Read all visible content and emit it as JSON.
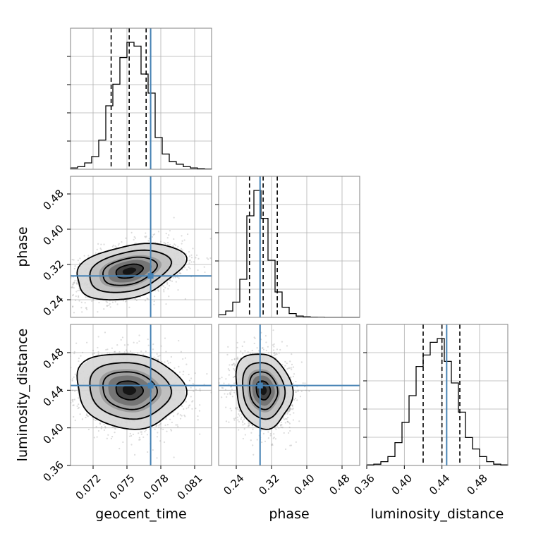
{
  "chart_data": {
    "type": "corner",
    "parameters": [
      "geocent_time",
      "phase",
      "luminosity_distance"
    ],
    "truth_color": "#4682b4",
    "truths": {
      "geocent_time": 0.0771,
      "phase": 0.294,
      "luminosity_distance": 0.445
    },
    "quantiles": {
      "geocent_time": [
        0.0736,
        0.0752,
        0.0767
      ],
      "phase": [
        0.27,
        0.301,
        0.333
      ],
      "luminosity_distance": [
        0.42,
        0.44,
        0.459
      ]
    },
    "ranges": {
      "geocent_time": [
        0.07,
        0.0825
      ],
      "phase": [
        0.2,
        0.52
      ],
      "luminosity_distance": [
        0.36,
        0.51
      ]
    },
    "ticks": {
      "geocent_time": [
        "0.072",
        "0.075",
        "0.078",
        "0.081"
      ],
      "phase": [
        "0.24",
        "0.32",
        "0.40",
        "0.48"
      ],
      "luminosity_distance": [
        "0.36",
        "0.40",
        "0.44",
        "0.48"
      ]
    },
    "histograms": {
      "geocent_time": {
        "edges_start": 0.07,
        "edges_step": 0.000625,
        "counts": [
          0.01,
          0.02,
          0.05,
          0.1,
          0.23,
          0.5,
          0.67,
          0.88,
          1.0,
          0.97,
          0.75,
          0.6,
          0.25,
          0.12,
          0.06,
          0.04,
          0.02,
          0.01,
          0.005,
          0.002
        ]
      },
      "phase": {
        "edges_start": 0.2,
        "edges_step": 0.016,
        "counts": [
          0.02,
          0.05,
          0.12,
          0.3,
          0.8,
          1.0,
          0.78,
          0.45,
          0.2,
          0.08,
          0.03,
          0.01,
          0.005,
          0.002,
          0.001,
          0.0,
          0.0,
          0.0,
          0.0,
          0.0
        ]
      },
      "luminosity_distance": {
        "edges_start": 0.36,
        "edges_step": 0.0075,
        "counts": [
          0.005,
          0.01,
          0.03,
          0.07,
          0.18,
          0.34,
          0.55,
          0.78,
          0.87,
          0.97,
          1.0,
          0.82,
          0.65,
          0.42,
          0.22,
          0.13,
          0.07,
          0.03,
          0.01,
          0.005
        ]
      }
    },
    "pairs": [
      {
        "x": "geocent_time",
        "y": "phase",
        "mean": [
          0.0752,
          0.305
        ],
        "std": [
          0.0024,
          0.032
        ],
        "corr": 0.35
      },
      {
        "x": "geocent_time",
        "y": "luminosity_distance",
        "mean": [
          0.0752,
          0.44
        ],
        "std": [
          0.0024,
          0.02
        ],
        "corr": -0.1
      },
      {
        "x": "phase",
        "y": "luminosity_distance",
        "mean": [
          0.301,
          0.44
        ],
        "std": [
          0.032,
          0.02
        ],
        "corr": -0.12
      }
    ],
    "grid": true
  }
}
